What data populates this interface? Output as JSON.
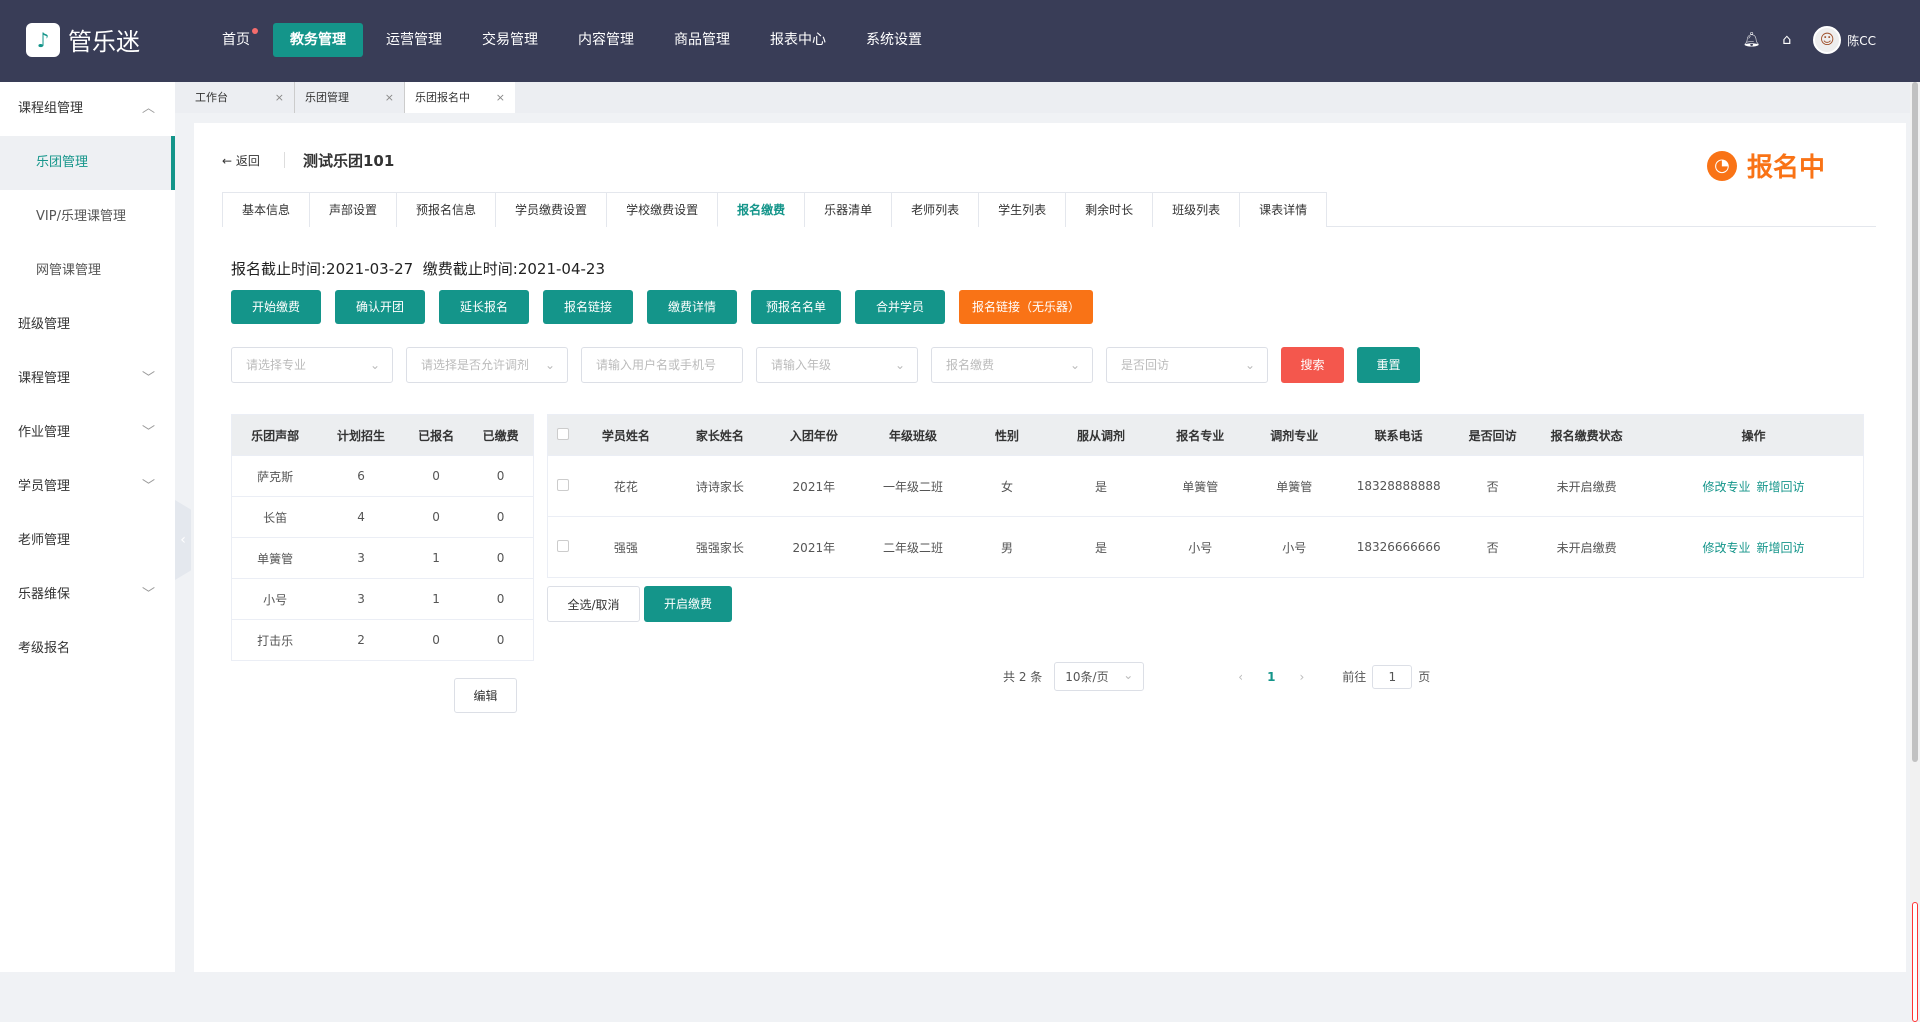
{
  "header": {
    "logo": "管乐迷",
    "nav": [
      "首页",
      "教务管理",
      "运营管理",
      "交易管理",
      "内容管理",
      "商品管理",
      "报表中心",
      "系统设置"
    ],
    "active_nav": 1,
    "user": "陈CC"
  },
  "sidebar": {
    "items": [
      {
        "label": "课程组管理",
        "chev": "^"
      },
      {
        "label": "乐团管理",
        "sub": true,
        "on": true
      },
      {
        "label": "VIP/乐理课管理",
        "sub": true
      },
      {
        "label": "网管课管理",
        "sub": true
      },
      {
        "label": "班级管理"
      },
      {
        "label": "课程管理",
        "chev": "v"
      },
      {
        "label": "作业管理",
        "chev": "v"
      },
      {
        "label": "学员管理",
        "chev": "v"
      },
      {
        "label": "老师管理"
      },
      {
        "label": "乐器维保",
        "chev": "v"
      },
      {
        "label": "考级报名"
      }
    ]
  },
  "tabs": [
    "工作台",
    "乐团管理",
    "乐团报名中"
  ],
  "page": {
    "back": "返回",
    "title": "测试乐团101",
    "status": "报名中",
    "status_color": "#f97316",
    "tabs": [
      "基本信息",
      "声部设置",
      "预报名信息",
      "学员缴费设置",
      "学校缴费设置",
      "报名缴费",
      "乐器清单",
      "老师列表",
      "学生列表",
      "剩余时长",
      "班级列表",
      "课表详情"
    ],
    "active_tab": 5,
    "deadline": "报名截止时间:2021-03-27  缴费截止时间:2021-04-23",
    "actions": [
      "开始缴费",
      "确认开团",
      "延长报名",
      "报名链接",
      "缴费详情",
      "预报名名单",
      "合并学员",
      "报名链接（无乐器）"
    ],
    "filters": [
      "请选择专业",
      "请选择是否允许调剂",
      "请输入用户名或手机号",
      "请输入年级",
      "报名缴费",
      "是否回访"
    ],
    "search": "搜索",
    "reset": "重置"
  },
  "voice_table": {
    "headers": [
      "乐团声部",
      "计划招生",
      "已报名",
      "已缴费"
    ],
    "rows": [
      [
        "萨克斯",
        "6",
        "0",
        "0"
      ],
      [
        "长笛",
        "4",
        "0",
        "0"
      ],
      [
        "单簧管",
        "3",
        "1",
        "0"
      ],
      [
        "小号",
        "3",
        "1",
        "0"
      ],
      [
        "打击乐",
        "2",
        "0",
        "0"
      ]
    ],
    "edit": "编辑"
  },
  "student_table": {
    "headers": [
      "学员姓名",
      "家长姓名",
      "入团年份",
      "年级班级",
      "性别",
      "服从调剂",
      "报名专业",
      "调剂专业",
      "联系电话",
      "是否回访",
      "报名缴费状态",
      "操作"
    ],
    "rows": [
      [
        "花花",
        "诗诗家长",
        "2021年",
        "一年级二班",
        "女",
        "是",
        "单簧管",
        "单簧管",
        "18328888888",
        "否",
        "未开启缴费"
      ],
      [
        "强强",
        "强强家长",
        "2021年",
        "二年级二班",
        "男",
        "是",
        "小号",
        "小号",
        "18326666666",
        "否",
        "未开启缴费"
      ]
    ],
    "row_actions": [
      "修改专业",
      "新增回访"
    ],
    "select_all": "全选/取消",
    "open_fee": "开启缴费"
  },
  "pagination": {
    "total": "共 2 条",
    "page_size": "10条/页",
    "current": "1",
    "goto": "前往",
    "goto_value": "1",
    "page_unit": "页"
  }
}
